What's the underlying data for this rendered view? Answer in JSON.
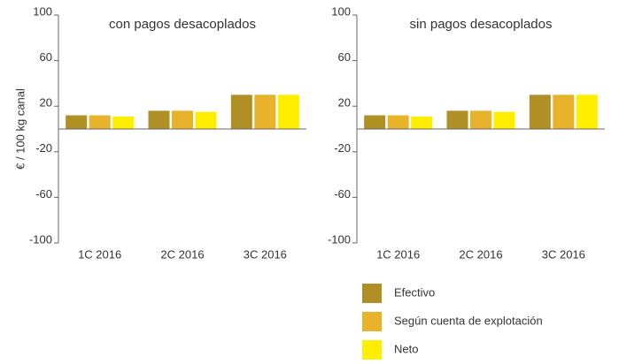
{
  "chart_data": [
    {
      "type": "bar",
      "title": "con pagos desacoplados",
      "y_label": "€ / 100 kg canal",
      "categories": [
        "1C 2016",
        "2C 2016",
        "3C 2016"
      ],
      "series": [
        {
          "values": [
            12,
            16,
            30
          ]
        },
        {
          "values": [
            12,
            16,
            30
          ]
        },
        {
          "values": [
            11,
            15,
            30
          ]
        }
      ],
      "ylim": [
        -100,
        100
      ],
      "yticks": [
        -100,
        -60,
        -20,
        20,
        60,
        100
      ]
    },
    {
      "type": "bar",
      "title": "sin pagos desacoplados",
      "categories": [
        "1C 2016",
        "2C 2016",
        "3C 2016"
      ],
      "series": [
        {
          "values": [
            12,
            16,
            30
          ]
        },
        {
          "values": [
            12,
            16,
            30
          ]
        },
        {
          "values": [
            11,
            15,
            30
          ]
        }
      ],
      "ylim": [
        -100,
        100
      ],
      "yticks": [
        -100,
        -60,
        -20,
        20,
        60,
        100
      ]
    }
  ],
  "legend": [
    {
      "name": "Efectivo",
      "color": "#b08f24"
    },
    {
      "name": "Según cuenta de explotación",
      "color": "#e8b32a"
    },
    {
      "name": "Neto",
      "color": "#ffee00"
    }
  ]
}
